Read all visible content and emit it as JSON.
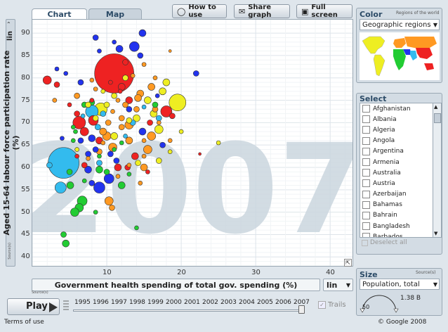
{
  "tabs": [
    {
      "label": "Chart"
    },
    {
      "label": "Map"
    }
  ],
  "buttons": {
    "how_to_use": "How to use",
    "share_graph": "Share graph",
    "full_screen": "Full screen"
  },
  "axes": {
    "ylabel": "Aged 15-64 labour force participation rate (%)",
    "xlabel": "Government health spending of total gov. spending (%)",
    "y_scale": "lin",
    "x_scale": "lin",
    "source": "Source(s)"
  },
  "year_label": "2007",
  "play": {
    "label": "Play",
    "trails": "Trails"
  },
  "timeline": {
    "years": [
      "1995",
      "1996",
      "1997",
      "1998",
      "1999",
      "2000",
      "2001",
      "2002",
      "2003",
      "2004",
      "2005",
      "2006",
      "2007"
    ]
  },
  "footer": {
    "terms": "Terms of use",
    "copyright": "© Google 2008"
  },
  "color_panel": {
    "title": "Color",
    "subtitle": "Regions of the world",
    "selected": "Geographic regions"
  },
  "select_panel": {
    "title": "Select",
    "countries": [
      "Afghanistan",
      "Albania",
      "Algeria",
      "Angola",
      "Argentina",
      "Armenia",
      "Australia",
      "Austria",
      "Azerbaijan",
      "Bahamas",
      "Bahrain",
      "Bangladesh",
      "Barbados"
    ],
    "deselect": "Deselect all"
  },
  "size_panel": {
    "title": "Size",
    "source": "Source(s)",
    "selected": "Population, total",
    "max_label": "1.38 B",
    "min_label": "50"
  },
  "colors": {
    "asia_east": "#ee2222",
    "asia_south": "#33bbee",
    "europe": "#ff9922",
    "africa": "#22cc33",
    "americas": "#eeee22",
    "middle_east": "#2233ee"
  },
  "chart_data": {
    "type": "scatter",
    "xlim": [
      0,
      43
    ],
    "ylim": [
      38,
      93
    ],
    "x_ticks": [
      10,
      20,
      30,
      40
    ],
    "y_ticks": [
      40,
      45,
      50,
      55,
      60,
      65,
      70,
      75,
      80,
      85,
      90
    ],
    "xlabel": "Government health spending of total gov. spending (%)",
    "ylabel": "Aged 15-64 labour force participation rate (%)",
    "points": [
      {
        "x": 11.0,
        "y": 81.0,
        "size": 28,
        "color": "asia_east"
      },
      {
        "x": 4.2,
        "y": 61.0,
        "size": 22,
        "color": "asia_south"
      },
      {
        "x": 19.5,
        "y": 74.5,
        "size": 12,
        "color": "americas"
      },
      {
        "x": 6.3,
        "y": 70.0,
        "size": 9,
        "color": "asia_east"
      },
      {
        "x": 9.2,
        "y": 73.0,
        "size": 9,
        "color": "americas"
      },
      {
        "x": 2.0,
        "y": 79.5,
        "size": 6,
        "color": "asia_east"
      },
      {
        "x": 3.8,
        "y": 55.5,
        "size": 8,
        "color": "asia_south"
      },
      {
        "x": 8.0,
        "y": 72.5,
        "size": 9,
        "color": "asia_south"
      },
      {
        "x": 8.2,
        "y": 70.5,
        "size": 7,
        "color": "asia_east"
      },
      {
        "x": 18.0,
        "y": 72.5,
        "size": 8,
        "color": "asia_east"
      },
      {
        "x": 6.7,
        "y": 52.5,
        "size": 7,
        "color": "africa"
      },
      {
        "x": 10.3,
        "y": 57.5,
        "size": 7,
        "color": "middle_east"
      },
      {
        "x": 9.0,
        "y": 55.5,
        "size": 8,
        "color": "middle_east"
      },
      {
        "x": 13.7,
        "y": 87.0,
        "size": 7,
        "color": "middle_east"
      },
      {
        "x": 14.8,
        "y": 90.0,
        "size": 5,
        "color": "middle_east"
      },
      {
        "x": 11.7,
        "y": 86.5,
        "size": 5,
        "color": "middle_east"
      },
      {
        "x": 8.5,
        "y": 89.0,
        "size": 4,
        "color": "middle_east"
      },
      {
        "x": 7.0,
        "y": 74.0,
        "size": 4,
        "color": "africa"
      },
      {
        "x": 5.5,
        "y": 69.0,
        "size": 3,
        "color": "africa"
      },
      {
        "x": 5.0,
        "y": 59.0,
        "size": 4,
        "color": "africa"
      },
      {
        "x": 6.3,
        "y": 51.0,
        "size": 6,
        "color": "africa"
      },
      {
        "x": 5.7,
        "y": 50.0,
        "size": 6,
        "color": "africa"
      },
      {
        "x": 5.1,
        "y": 56.0,
        "size": 5,
        "color": "africa"
      },
      {
        "x": 12.0,
        "y": 56.0,
        "size": 5,
        "color": "africa"
      },
      {
        "x": 10.3,
        "y": 52.5,
        "size": 6,
        "color": "europe"
      },
      {
        "x": 10.7,
        "y": 51.0,
        "size": 4,
        "color": "europe"
      },
      {
        "x": 15.0,
        "y": 60.0,
        "size": 5,
        "color": "europe"
      },
      {
        "x": 16.0,
        "y": 67.0,
        "size": 6,
        "color": "europe"
      },
      {
        "x": 17.0,
        "y": 68.5,
        "size": 6,
        "color": "americas"
      },
      {
        "x": 15.5,
        "y": 64.0,
        "size": 6,
        "color": "europe"
      },
      {
        "x": 13.0,
        "y": 69.5,
        "size": 6,
        "color": "europe"
      },
      {
        "x": 17.5,
        "y": 77.0,
        "size": 5,
        "color": "americas"
      },
      {
        "x": 14.5,
        "y": 76.5,
        "size": 5,
        "color": "europe"
      },
      {
        "x": 12.5,
        "y": 74.0,
        "size": 4,
        "color": "europe"
      },
      {
        "x": 10.0,
        "y": 67.0,
        "size": 6,
        "color": "europe"
      },
      {
        "x": 10.8,
        "y": 64.5,
        "size": 6,
        "color": "europe"
      },
      {
        "x": 13.0,
        "y": 66.0,
        "size": 5,
        "color": "europe"
      },
      {
        "x": 14.2,
        "y": 75.5,
        "size": 5,
        "color": "europe"
      },
      {
        "x": 16.0,
        "y": 78.0,
        "size": 5,
        "color": "europe"
      },
      {
        "x": 16.5,
        "y": 73.0,
        "size": 4,
        "color": "europe"
      },
      {
        "x": 12.0,
        "y": 71.0,
        "size": 4,
        "color": "europe"
      },
      {
        "x": 10.2,
        "y": 70.0,
        "size": 4,
        "color": "europe"
      },
      {
        "x": 9.5,
        "y": 68.0,
        "size": 5,
        "color": "europe"
      },
      {
        "x": 9.0,
        "y": 63.5,
        "size": 4,
        "color": "europe"
      },
      {
        "x": 13.0,
        "y": 75.0,
        "size": 5,
        "color": "asia_east"
      },
      {
        "x": 7.0,
        "y": 68.0,
        "size": 6,
        "color": "asia_east"
      },
      {
        "x": 9.0,
        "y": 66.0,
        "size": 5,
        "color": "asia_east"
      },
      {
        "x": 13.8,
        "y": 62.5,
        "size": 5,
        "color": "asia_east"
      },
      {
        "x": 15.8,
        "y": 70.0,
        "size": 4,
        "color": "asia_east"
      },
      {
        "x": 12.0,
        "y": 78.0,
        "size": 5,
        "color": "asia_east"
      },
      {
        "x": 7.0,
        "y": 60.5,
        "size": 4,
        "color": "asia_east"
      },
      {
        "x": 12.8,
        "y": 60.0,
        "size": 4,
        "color": "asia_east"
      },
      {
        "x": 3.3,
        "y": 78.5,
        "size": 4,
        "color": "asia_east"
      },
      {
        "x": 12.5,
        "y": 83.5,
        "size": 4,
        "color": "asia_east"
      },
      {
        "x": 11.5,
        "y": 60.0,
        "size": 5,
        "color": "asia_east"
      },
      {
        "x": 18.8,
        "y": 71.5,
        "size": 4,
        "color": "asia_east"
      },
      {
        "x": 6.0,
        "y": 72.0,
        "size": 4,
        "color": "asia_east"
      },
      {
        "x": 15.5,
        "y": 59.0,
        "size": 3,
        "color": "asia_east"
      },
      {
        "x": 8.0,
        "y": 66.5,
        "size": 5,
        "color": "middle_east"
      },
      {
        "x": 7.5,
        "y": 63.0,
        "size": 4,
        "color": "middle_east"
      },
      {
        "x": 8.5,
        "y": 64.0,
        "size": 4,
        "color": "middle_east"
      },
      {
        "x": 10.5,
        "y": 63.0,
        "size": 4,
        "color": "middle_east"
      },
      {
        "x": 14.8,
        "y": 68.0,
        "size": 5,
        "color": "middle_east"
      },
      {
        "x": 17.5,
        "y": 65.0,
        "size": 4,
        "color": "middle_east"
      },
      {
        "x": 7.5,
        "y": 59.5,
        "size": 5,
        "color": "middle_east"
      },
      {
        "x": 11.3,
        "y": 61.5,
        "size": 4,
        "color": "middle_east"
      },
      {
        "x": 8.0,
        "y": 56.5,
        "size": 4,
        "color": "middle_east"
      },
      {
        "x": 6.5,
        "y": 66.0,
        "size": 4,
        "color": "middle_east"
      },
      {
        "x": 4.5,
        "y": 81.0,
        "size": 3,
        "color": "middle_east"
      },
      {
        "x": 3.3,
        "y": 82.0,
        "size": 3,
        "color": "middle_east"
      },
      {
        "x": 14.5,
        "y": 85.0,
        "size": 4,
        "color": "middle_east"
      },
      {
        "x": 6.5,
        "y": 79.0,
        "size": 4,
        "color": "middle_east"
      },
      {
        "x": 9.0,
        "y": 86.0,
        "size": 3,
        "color": "middle_east"
      },
      {
        "x": 11.0,
        "y": 88.0,
        "size": 3,
        "color": "middle_east"
      },
      {
        "x": 4.0,
        "y": 66.5,
        "size": 3,
        "color": "middle_east"
      },
      {
        "x": 13.0,
        "y": 73.0,
        "size": 4,
        "color": "middle_east"
      },
      {
        "x": 16.8,
        "y": 76.0,
        "size": 3,
        "color": "middle_east"
      },
      {
        "x": 22.0,
        "y": 81.0,
        "size": 4,
        "color": "middle_east"
      },
      {
        "x": 8.8,
        "y": 69.0,
        "size": 4,
        "color": "asia_south"
      },
      {
        "x": 9.5,
        "y": 72.0,
        "size": 4,
        "color": "asia_south"
      },
      {
        "x": 13.5,
        "y": 70.0,
        "size": 4,
        "color": "asia_south"
      },
      {
        "x": 17.0,
        "y": 71.0,
        "size": 4,
        "color": "asia_south"
      },
      {
        "x": 6.8,
        "y": 71.5,
        "size": 3,
        "color": "asia_south"
      },
      {
        "x": 12.5,
        "y": 67.0,
        "size": 3,
        "color": "asia_south"
      },
      {
        "x": 15.0,
        "y": 73.5,
        "size": 3,
        "color": "asia_south"
      },
      {
        "x": 2.3,
        "y": 60.5,
        "size": 4,
        "color": "asia_south"
      },
      {
        "x": 9.0,
        "y": 61.0,
        "size": 4,
        "color": "asia_south"
      },
      {
        "x": 4.2,
        "y": 45.0,
        "size": 4,
        "color": "africa"
      },
      {
        "x": 4.5,
        "y": 43.0,
        "size": 5,
        "color": "africa"
      },
      {
        "x": 8.5,
        "y": 50.0,
        "size": 3,
        "color": "africa"
      },
      {
        "x": 13.0,
        "y": 58.5,
        "size": 3,
        "color": "africa"
      },
      {
        "x": 14.0,
        "y": 46.5,
        "size": 3,
        "color": "africa"
      },
      {
        "x": 9.0,
        "y": 62.5,
        "size": 3,
        "color": "africa"
      },
      {
        "x": 11.0,
        "y": 64.0,
        "size": 3,
        "color": "africa"
      },
      {
        "x": 7.0,
        "y": 57.0,
        "size": 3,
        "color": "africa"
      },
      {
        "x": 10.0,
        "y": 59.0,
        "size": 4,
        "color": "africa"
      },
      {
        "x": 12.0,
        "y": 65.5,
        "size": 3,
        "color": "africa"
      },
      {
        "x": 8.0,
        "y": 74.5,
        "size": 4,
        "color": "africa"
      },
      {
        "x": 5.8,
        "y": 68.0,
        "size": 3,
        "color": "africa"
      },
      {
        "x": 9.0,
        "y": 59.5,
        "size": 5,
        "color": "africa"
      },
      {
        "x": 5.5,
        "y": 66.0,
        "size": 3,
        "color": "africa"
      },
      {
        "x": 16.5,
        "y": 74.0,
        "size": 4,
        "color": "africa"
      },
      {
        "x": 13.0,
        "y": 70.5,
        "size": 4,
        "color": "americas"
      },
      {
        "x": 14.0,
        "y": 71.0,
        "size": 5,
        "color": "americas"
      },
      {
        "x": 16.3,
        "y": 72.0,
        "size": 5,
        "color": "americas"
      },
      {
        "x": 15.5,
        "y": 75.0,
        "size": 5,
        "color": "americas"
      },
      {
        "x": 18.0,
        "y": 79.0,
        "size": 5,
        "color": "americas"
      },
      {
        "x": 11.0,
        "y": 67.0,
        "size": 5,
        "color": "americas"
      },
      {
        "x": 14.2,
        "y": 61.0,
        "size": 4,
        "color": "americas"
      },
      {
        "x": 10.0,
        "y": 74.0,
        "size": 4,
        "color": "americas"
      },
      {
        "x": 7.5,
        "y": 74.0,
        "size": 4,
        "color": "americas"
      },
      {
        "x": 17.0,
        "y": 61.5,
        "size": 4,
        "color": "americas"
      },
      {
        "x": 20.0,
        "y": 68.0,
        "size": 3,
        "color": "americas"
      },
      {
        "x": 25.0,
        "y": 65.5,
        "size": 3,
        "color": "americas"
      },
      {
        "x": 12.5,
        "y": 80.0,
        "size": 4,
        "color": "americas"
      },
      {
        "x": 18.5,
        "y": 63.5,
        "size": 3,
        "color": "americas"
      },
      {
        "x": 8.5,
        "y": 71.0,
        "size": 4,
        "color": "americas"
      },
      {
        "x": 11.0,
        "y": 76.0,
        "size": 4,
        "color": "americas"
      },
      {
        "x": 6.0,
        "y": 64.0,
        "size": 3,
        "color": "americas"
      },
      {
        "x": 9.5,
        "y": 77.0,
        "size": 3,
        "color": "americas"
      },
      {
        "x": 15.0,
        "y": 66.0,
        "size": 3,
        "color": "europe"
      },
      {
        "x": 6.0,
        "y": 76.0,
        "size": 4,
        "color": "europe"
      },
      {
        "x": 3.0,
        "y": 75.0,
        "size": 3,
        "color": "europe"
      },
      {
        "x": 8.5,
        "y": 77.5,
        "size": 3,
        "color": "europe"
      },
      {
        "x": 11.5,
        "y": 75.0,
        "size": 3,
        "color": "europe"
      },
      {
        "x": 10.8,
        "y": 72.5,
        "size": 3,
        "color": "europe"
      },
      {
        "x": 14.0,
        "y": 73.0,
        "size": 4,
        "color": "europe"
      },
      {
        "x": 12.0,
        "y": 69.0,
        "size": 4,
        "color": "europe"
      },
      {
        "x": 17.0,
        "y": 70.0,
        "size": 3,
        "color": "europe"
      },
      {
        "x": 18.5,
        "y": 66.0,
        "size": 3,
        "color": "europe"
      },
      {
        "x": 15.0,
        "y": 62.5,
        "size": 3,
        "color": "europe"
      },
      {
        "x": 9.5,
        "y": 65.5,
        "size": 3,
        "color": "europe"
      },
      {
        "x": 13.0,
        "y": 60.5,
        "size": 3,
        "color": "europe"
      },
      {
        "x": 7.5,
        "y": 62.0,
        "size": 3,
        "color": "europe"
      },
      {
        "x": 11.5,
        "y": 58.0,
        "size": 3,
        "color": "europe"
      },
      {
        "x": 14.5,
        "y": 56.5,
        "size": 3,
        "color": "europe"
      },
      {
        "x": 8.0,
        "y": 79.5,
        "size": 3,
        "color": "europe"
      },
      {
        "x": 18.5,
        "y": 86.0,
        "size": 2,
        "color": "europe"
      },
      {
        "x": 16.5,
        "y": 80.0,
        "size": 3,
        "color": "europe"
      },
      {
        "x": 13.5,
        "y": 80.5,
        "size": 3,
        "color": "europe"
      },
      {
        "x": 15.0,
        "y": 83.0,
        "size": 3,
        "color": "europe"
      },
      {
        "x": 22.5,
        "y": 63.0,
        "size": 2,
        "color": "asia_east"
      },
      {
        "x": 10.5,
        "y": 79.0,
        "size": 3,
        "color": "asia_east"
      },
      {
        "x": 8.0,
        "y": 75.0,
        "size": 3,
        "color": "asia_east"
      },
      {
        "x": 6.0,
        "y": 62.5,
        "size": 3,
        "color": "asia_east"
      },
      {
        "x": 11.8,
        "y": 77.0,
        "size": 3,
        "color": "asia_east"
      },
      {
        "x": 5.0,
        "y": 74.0,
        "size": 3,
        "color": "asia_east"
      }
    ]
  }
}
